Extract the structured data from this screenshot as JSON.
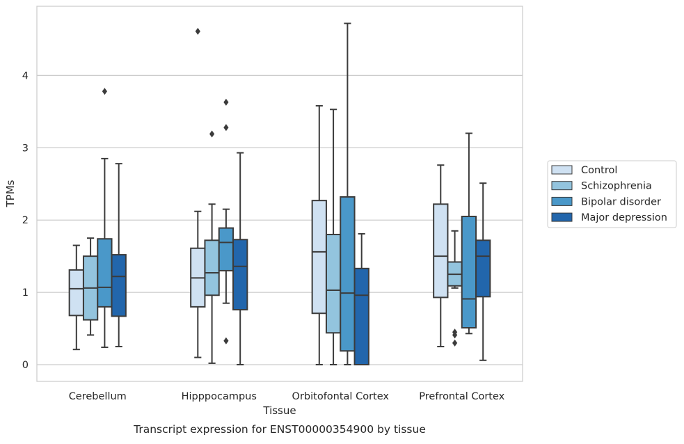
{
  "chart_data": {
    "type": "box",
    "title": "",
    "caption": "Transcript expression for ENST00000354900 by tissue",
    "xlabel": "Tissue",
    "ylabel": "TPMs",
    "categories": [
      "Cerebellum",
      "Hipppocampus",
      "Orbitofontal Cortex",
      "Prefrontal Cortex"
    ],
    "ylim": [
      -0.22,
      4.95
    ],
    "yticks": [
      0,
      1,
      2,
      3,
      4
    ],
    "grid": true,
    "legend_position": "right",
    "series": [
      {
        "name": "Control",
        "color": "#cfe1f2",
        "boxes": [
          {
            "whisker_low": 0.21,
            "q1": 0.68,
            "median": 1.05,
            "q3": 1.31,
            "whisker_high": 1.65,
            "outliers": []
          },
          {
            "whisker_low": 0.1,
            "q1": 0.8,
            "median": 1.2,
            "q3": 1.61,
            "whisker_high": 2.12,
            "outliers": [
              4.61
            ]
          },
          {
            "whisker_low": 0.0,
            "q1": 0.71,
            "median": 1.56,
            "q3": 2.27,
            "whisker_high": 3.58,
            "outliers": []
          },
          {
            "whisker_low": 0.25,
            "q1": 0.93,
            "median": 1.5,
            "q3": 2.22,
            "whisker_high": 2.76,
            "outliers": []
          }
        ]
      },
      {
        "name": "Schizophrenia",
        "color": "#93c4de",
        "boxes": [
          {
            "whisker_low": 0.41,
            "q1": 0.62,
            "median": 1.06,
            "q3": 1.5,
            "whisker_high": 1.75,
            "outliers": []
          },
          {
            "whisker_low": 0.02,
            "q1": 0.96,
            "median": 1.27,
            "q3": 1.72,
            "whisker_high": 2.22,
            "outliers": [
              3.19
            ]
          },
          {
            "whisker_low": 0.0,
            "q1": 0.44,
            "median": 1.03,
            "q3": 1.8,
            "whisker_high": 3.53,
            "outliers": []
          },
          {
            "whisker_low": 1.06,
            "q1": 1.09,
            "median": 1.25,
            "q3": 1.42,
            "whisker_high": 1.85,
            "outliers": [
              0.3,
              0.41,
              0.45
            ]
          }
        ]
      },
      {
        "name": "Bipolar disorder",
        "color": "#4a98c9",
        "boxes": [
          {
            "whisker_low": 0.24,
            "q1": 0.8,
            "median": 1.07,
            "q3": 1.74,
            "whisker_high": 2.85,
            "outliers": [
              3.78
            ]
          },
          {
            "whisker_low": 0.85,
            "q1": 1.3,
            "median": 1.69,
            "q3": 1.89,
            "whisker_high": 2.15,
            "outliers": [
              0.33,
              3.28,
              3.63
            ]
          },
          {
            "whisker_low": 0.0,
            "q1": 0.19,
            "median": 0.99,
            "q3": 2.32,
            "whisker_high": 4.72,
            "outliers": []
          },
          {
            "whisker_low": 0.43,
            "q1": 0.51,
            "median": 0.91,
            "q3": 2.05,
            "whisker_high": 3.2,
            "outliers": []
          }
        ]
      },
      {
        "name": "Major depression",
        "color": "#2266ac",
        "boxes": [
          {
            "whisker_low": 0.25,
            "q1": 0.67,
            "median": 1.22,
            "q3": 1.52,
            "whisker_high": 2.78,
            "outliers": []
          },
          {
            "whisker_low": 0.0,
            "q1": 0.76,
            "median": 1.36,
            "q3": 1.73,
            "whisker_high": 2.93,
            "outliers": []
          },
          {
            "whisker_low": 0.0,
            "q1": 0.0,
            "median": 0.96,
            "q3": 1.33,
            "whisker_high": 1.81,
            "outliers": []
          },
          {
            "whisker_low": 0.06,
            "q1": 0.94,
            "median": 1.5,
            "q3": 1.72,
            "whisker_high": 2.51,
            "outliers": []
          }
        ]
      }
    ]
  }
}
